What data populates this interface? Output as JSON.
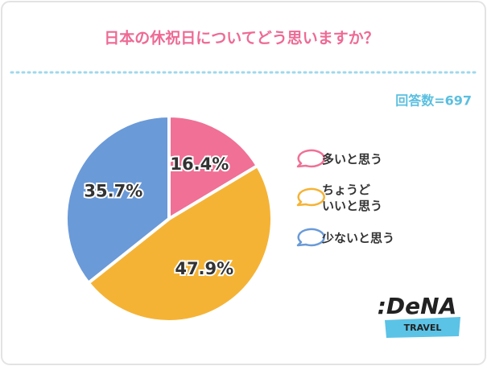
{
  "chart_data": {
    "type": "pie",
    "title": "日本の休祝日についてどう思いますか？",
    "annotation": "回答数=697",
    "categories": [
      "多いと思う",
      "ちょうど\nいいと思う",
      "少ないと思う"
    ],
    "values": [
      16.4,
      47.9,
      35.7
    ],
    "value_labels": [
      "16.4%",
      "47.9%",
      "35.7%"
    ],
    "colors": [
      "#f07096",
      "#f5b335",
      "#6a9ad8"
    ]
  },
  "logo": {
    "name": ":DeNA",
    "sub": "TRAVEL"
  }
}
